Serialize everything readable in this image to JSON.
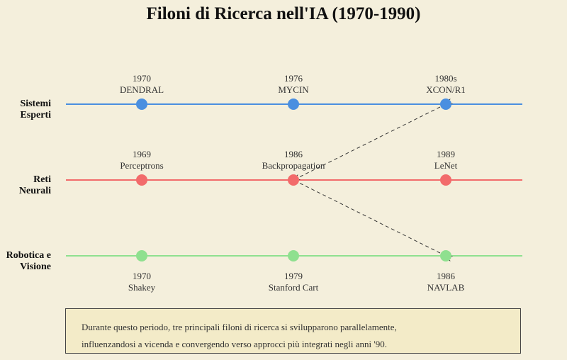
{
  "title": "Filoni di Ricerca nell'IA (1970-1990)",
  "lanes": [
    {
      "label_line1": "Sistemi",
      "label_line2": "Esperti",
      "color": "#4a8fe0",
      "events": [
        {
          "year": "1970",
          "name": "DENDRAL"
        },
        {
          "year": "1976",
          "name": "MYCIN"
        },
        {
          "year": "1980s",
          "name": "XCON/R1"
        }
      ]
    },
    {
      "label_line1": "Reti",
      "label_line2": "Neurali",
      "color": "#f26b6b",
      "events": [
        {
          "year": "1969",
          "name": "Perceptrons"
        },
        {
          "year": "1986",
          "name": "Backpropagation"
        },
        {
          "year": "1989",
          "name": "LeNet"
        }
      ]
    },
    {
      "label_line1": "Robotica e",
      "label_line2": "Visione",
      "color": "#8fe08f",
      "events": [
        {
          "year": "1970",
          "name": "Shakey"
        },
        {
          "year": "1979",
          "name": "Stanford Cart"
        },
        {
          "year": "1986",
          "name": "NAVLAB"
        }
      ]
    }
  ],
  "note": {
    "line1": "Durante questo periodo, tre principali filoni di ricerca si svilupparono parallelamente,",
    "line2": "influenzandosi a vicenda e convergendo verso approcci più integrati negli anni '90."
  }
}
